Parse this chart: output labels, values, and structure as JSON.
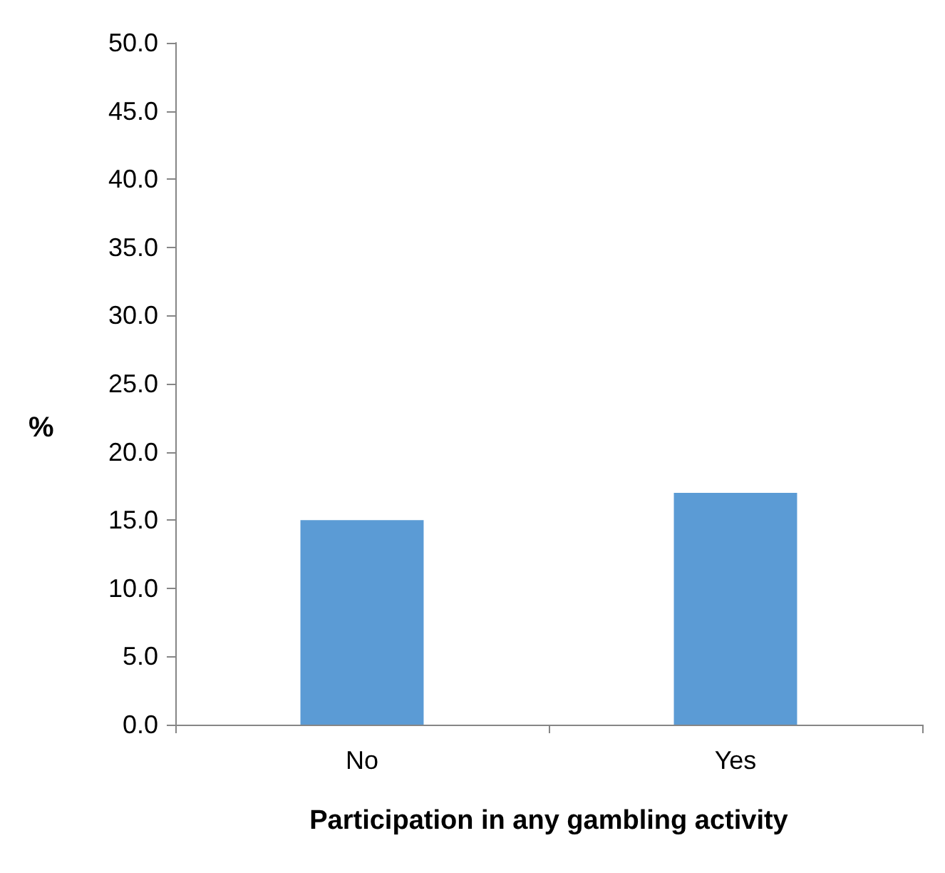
{
  "chart_data": {
    "type": "bar",
    "xlabel": "Participation in any gambling activity",
    "ylabel": "%",
    "categories": [
      "No",
      "Yes"
    ],
    "values": [
      15.0,
      17.0
    ],
    "color": "#5b9bd5",
    "ylim": [
      0,
      50
    ],
    "yticks": [
      {
        "value": 0,
        "label": "0.0"
      },
      {
        "value": 5,
        "label": "5.0"
      },
      {
        "value": 10,
        "label": "10.0"
      },
      {
        "value": 15,
        "label": "15.0"
      },
      {
        "value": 20,
        "label": "20.0"
      },
      {
        "value": 25,
        "label": "25.0"
      },
      {
        "value": 30,
        "label": "30.0"
      },
      {
        "value": 35,
        "label": "35.0"
      },
      {
        "value": 40,
        "label": "40.0"
      },
      {
        "value": 45,
        "label": "45.0"
      },
      {
        "value": 50,
        "label": "50.0"
      }
    ],
    "grid": false
  }
}
